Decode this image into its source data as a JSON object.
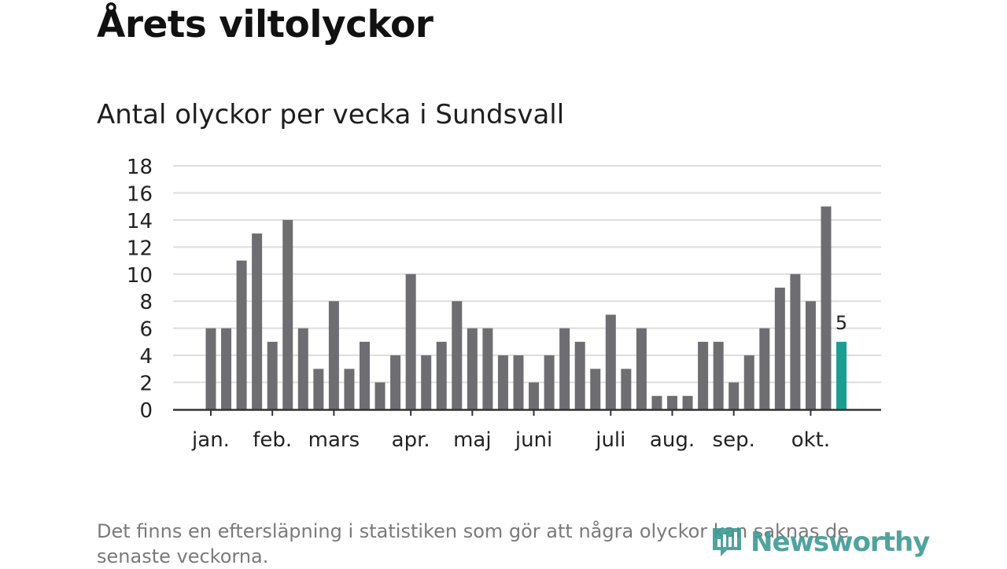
{
  "header": {
    "title": "Årets viltolyckor"
  },
  "chart_data": {
    "type": "bar",
    "title": "Antal olyckor per vecka i Sundsvall",
    "xlabel": "",
    "ylabel": "",
    "ylim": [
      0,
      18
    ],
    "yticks": [
      "0",
      "2",
      "4",
      "6",
      "8",
      "10",
      "12",
      "14",
      "16",
      "18"
    ],
    "grid": true,
    "month_labels": [
      {
        "label": "jan.",
        "week": 1
      },
      {
        "label": "feb.",
        "week": 5
      },
      {
        "label": "mars",
        "week": 9
      },
      {
        "label": "apr.",
        "week": 14
      },
      {
        "label": "maj",
        "week": 18
      },
      {
        "label": "juni",
        "week": 22
      },
      {
        "label": "juli",
        "week": 27
      },
      {
        "label": "aug.",
        "week": 31
      },
      {
        "label": "sep.",
        "week": 35
      },
      {
        "label": "okt.",
        "week": 40
      }
    ],
    "values": [
      6,
      6,
      11,
      13,
      5,
      14,
      6,
      3,
      8,
      3,
      5,
      2,
      4,
      10,
      4,
      5,
      8,
      6,
      6,
      4,
      4,
      2,
      4,
      6,
      5,
      3,
      7,
      3,
      6,
      1,
      1,
      1,
      5,
      5,
      2,
      4,
      6,
      9,
      10,
      8,
      15,
      5
    ],
    "highlight": {
      "index": 41,
      "label": "5"
    },
    "colors": {
      "bar": "#6e6d72",
      "highlight": "#1a9e92",
      "grid": "#dddddd",
      "axis": "#333333"
    }
  },
  "footer": {
    "note": "Det finns en eftersläpning i statistiken som gör att några olyckor kan saknas de senaste veckorna.",
    "brand": "Newsworthy"
  }
}
